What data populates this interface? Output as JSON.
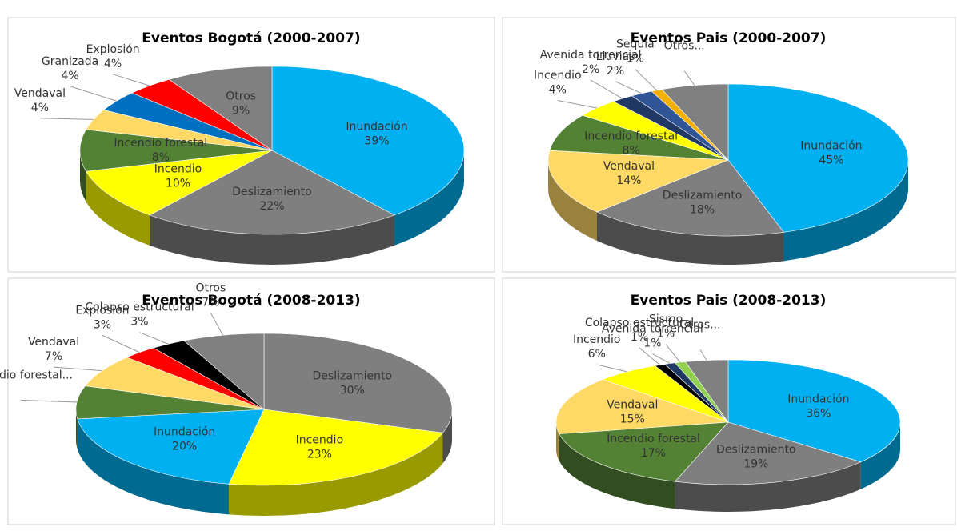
{
  "chart_data": [
    {
      "type": "pie",
      "title": "Eventos Bogotá (2000-2007)",
      "categories": [
        "Inundación",
        "Deslizamiento",
        "Incendio",
        "Incendio forestal",
        "Vendaval",
        "Granizada",
        "Explosión",
        "Otros"
      ],
      "values": [
        39,
        22,
        10,
        8,
        4,
        4,
        4,
        9
      ],
      "value_labels": [
        "39%",
        "22%",
        "10%",
        "8%",
        "4%",
        "4%",
        "4%",
        "9%"
      ],
      "colors": [
        "#00b0f0",
        "#7f7f7f",
        "#ffff00",
        "#548235",
        "#ffd966",
        "#0070c0",
        "#ff0000",
        "#808080"
      ]
    },
    {
      "type": "pie",
      "title": "Eventos Pais (2000-2007)",
      "categories": [
        "Inundación",
        "Deslizamiento",
        "Vendaval",
        "Incendio forestal",
        "Incendio",
        "Avenida torrencial",
        "Lluvias",
        "Sequía",
        "Otros..."
      ],
      "values": [
        45,
        18,
        14,
        8,
        4,
        2,
        2,
        1,
        6
      ],
      "value_labels": [
        "45%",
        "18%",
        "14%",
        "8%",
        "4%",
        "2%",
        "2%",
        "1%",
        null
      ],
      "colors": [
        "#00b0f0",
        "#7f7f7f",
        "#ffd966",
        "#548235",
        "#ffff00",
        "#203864",
        "#2f5597",
        "#f4b000",
        "#808080"
      ]
    },
    {
      "type": "pie",
      "title": "Eventos Bogotá (2008-2013)",
      "categories": [
        "Deslizamiento",
        "Incendio",
        "Inundación",
        "Incendio forestal...",
        "Vendaval",
        "Explosión",
        "Colapso estructural",
        "Otros"
      ],
      "values": [
        30,
        23,
        20,
        7,
        7,
        3,
        3,
        7
      ],
      "value_labels": [
        "30%",
        "23%",
        "20%",
        null,
        "7%",
        "3%",
        "3%",
        "7%"
      ],
      "colors": [
        "#7f7f7f",
        "#ffff00",
        "#00b0f0",
        "#548235",
        "#ffd966",
        "#ff0000",
        "#000000",
        "#808080"
      ]
    },
    {
      "type": "pie",
      "title": "Eventos Pais (2008-2013)",
      "categories": [
        "Inundación",
        "Deslizamiento",
        "Incendio forestal",
        "Vendaval",
        "Incendio",
        "Colapso estructural",
        "Avenida torrencial",
        "Sismo",
        "Otros..."
      ],
      "values": [
        36,
        19,
        17,
        15,
        6,
        1,
        1,
        1,
        4
      ],
      "value_labels": [
        "36%",
        "19%",
        "17%",
        "15%",
        "6%",
        "1%",
        "1%",
        "1%",
        null
      ],
      "colors": [
        "#00b0f0",
        "#7f7f7f",
        "#548235",
        "#ffd966",
        "#ffff00",
        "#000000",
        "#203864",
        "#92d050",
        "#808080"
      ]
    }
  ]
}
